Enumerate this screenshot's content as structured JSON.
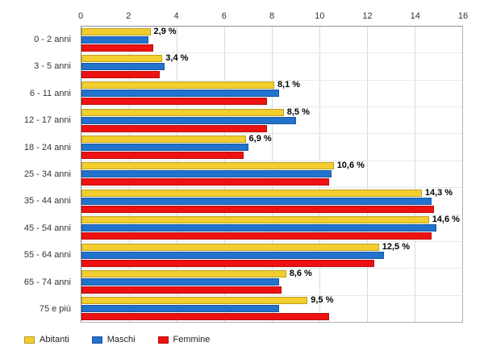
{
  "chart_data": {
    "type": "bar",
    "orientation": "horizontal",
    "title": "",
    "xlabel": "",
    "ylabel": "",
    "xlim": [
      0,
      16
    ],
    "xticks": [
      0,
      2,
      4,
      6,
      8,
      10,
      12,
      14,
      16
    ],
    "grid": true,
    "legend_position": "bottom",
    "categories": [
      "0 - 2 anni",
      "3 - 5 anni",
      "6 - 11 anni",
      "12 - 17 anni",
      "18 - 24 anni",
      "25 - 34 anni",
      "35 - 44 anni",
      "45 - 54 anni",
      "55 - 64 anni",
      "65 - 74 anni",
      "75 e più"
    ],
    "series": [
      {
        "name": "Abitanti",
        "color": "#F2CE2E",
        "values": [
          2.9,
          3.4,
          8.1,
          8.5,
          6.9,
          10.6,
          14.3,
          14.6,
          12.5,
          8.6,
          9.5
        ],
        "labels": [
          "2,9 %",
          "3,4 %",
          "8,1 %",
          "8,5 %",
          "6,9 %",
          "10,6 %",
          "14,3 %",
          "14,6 %",
          "12,5 %",
          "8,6 %",
          "9,5 %"
        ]
      },
      {
        "name": "Maschi",
        "color": "#2272CE",
        "values": [
          2.8,
          3.5,
          8.3,
          9.0,
          7.0,
          10.5,
          14.7,
          14.9,
          12.7,
          8.3,
          8.3
        ]
      },
      {
        "name": "Femmine",
        "color": "#EE1111",
        "values": [
          3.0,
          3.3,
          7.8,
          7.8,
          6.8,
          10.4,
          14.8,
          14.7,
          12.3,
          8.4,
          10.4
        ]
      }
    ]
  },
  "legend": {
    "items": [
      "Abitanti",
      "Maschi",
      "Femmine"
    ]
  }
}
